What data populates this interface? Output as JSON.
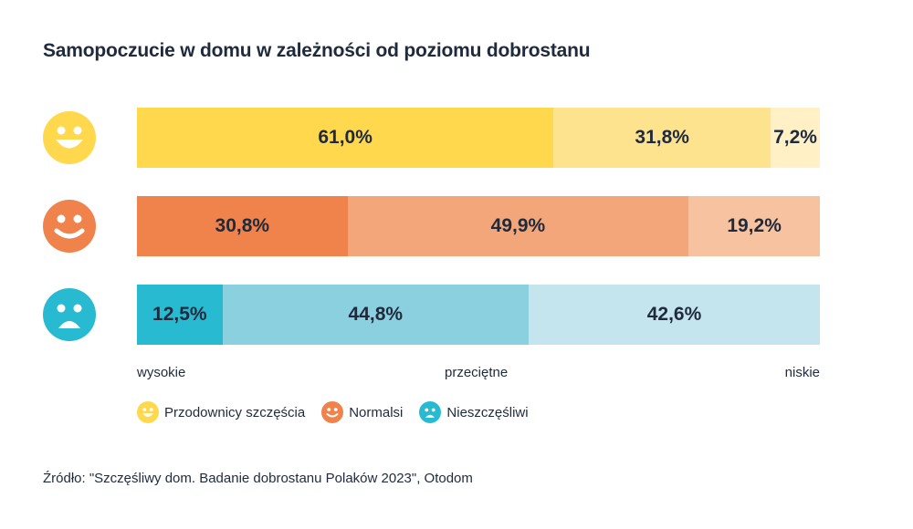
{
  "chart_data": {
    "type": "bar",
    "orientation": "horizontal",
    "stacked": true,
    "title": "Samopoczucie w domu w zależności od poziomu dobrostanu",
    "categories": [
      "wysokie",
      "przeciętne",
      "niskie"
    ],
    "groups": [
      {
        "name": "Przodownicy szczęścia",
        "icon": "happy-face-icon",
        "values": [
          61.0,
          31.8,
          7.2
        ],
        "labels": [
          "61,0%",
          "31,8%",
          "7,2%"
        ],
        "colors": [
          "#FFD84D",
          "#FEE38E",
          "#FFF0C6"
        ],
        "face_color": "#FFD84D"
      },
      {
        "name": "Normalsi",
        "icon": "smile-face-icon",
        "values": [
          30.8,
          49.9,
          19.2
        ],
        "labels": [
          "30,8%",
          "49,9%",
          "19,2%"
        ],
        "colors": [
          "#F0824B",
          "#F2A679",
          "#F6C2A0"
        ],
        "face_color": "#F0824B"
      },
      {
        "name": "Nieszczęśliwi",
        "icon": "sad-face-icon",
        "values": [
          12.5,
          44.8,
          42.6
        ],
        "labels": [
          "12,5%",
          "44,8%",
          "42,6%"
        ],
        "colors": [
          "#27BAD0",
          "#8AD0DF",
          "#C4E5ED"
        ],
        "face_color": "#27BAD0"
      }
    ]
  },
  "source": "Źródło: \"Szczęśliwy dom. Badanie dobrostanu Polaków 2023\", Otodom"
}
